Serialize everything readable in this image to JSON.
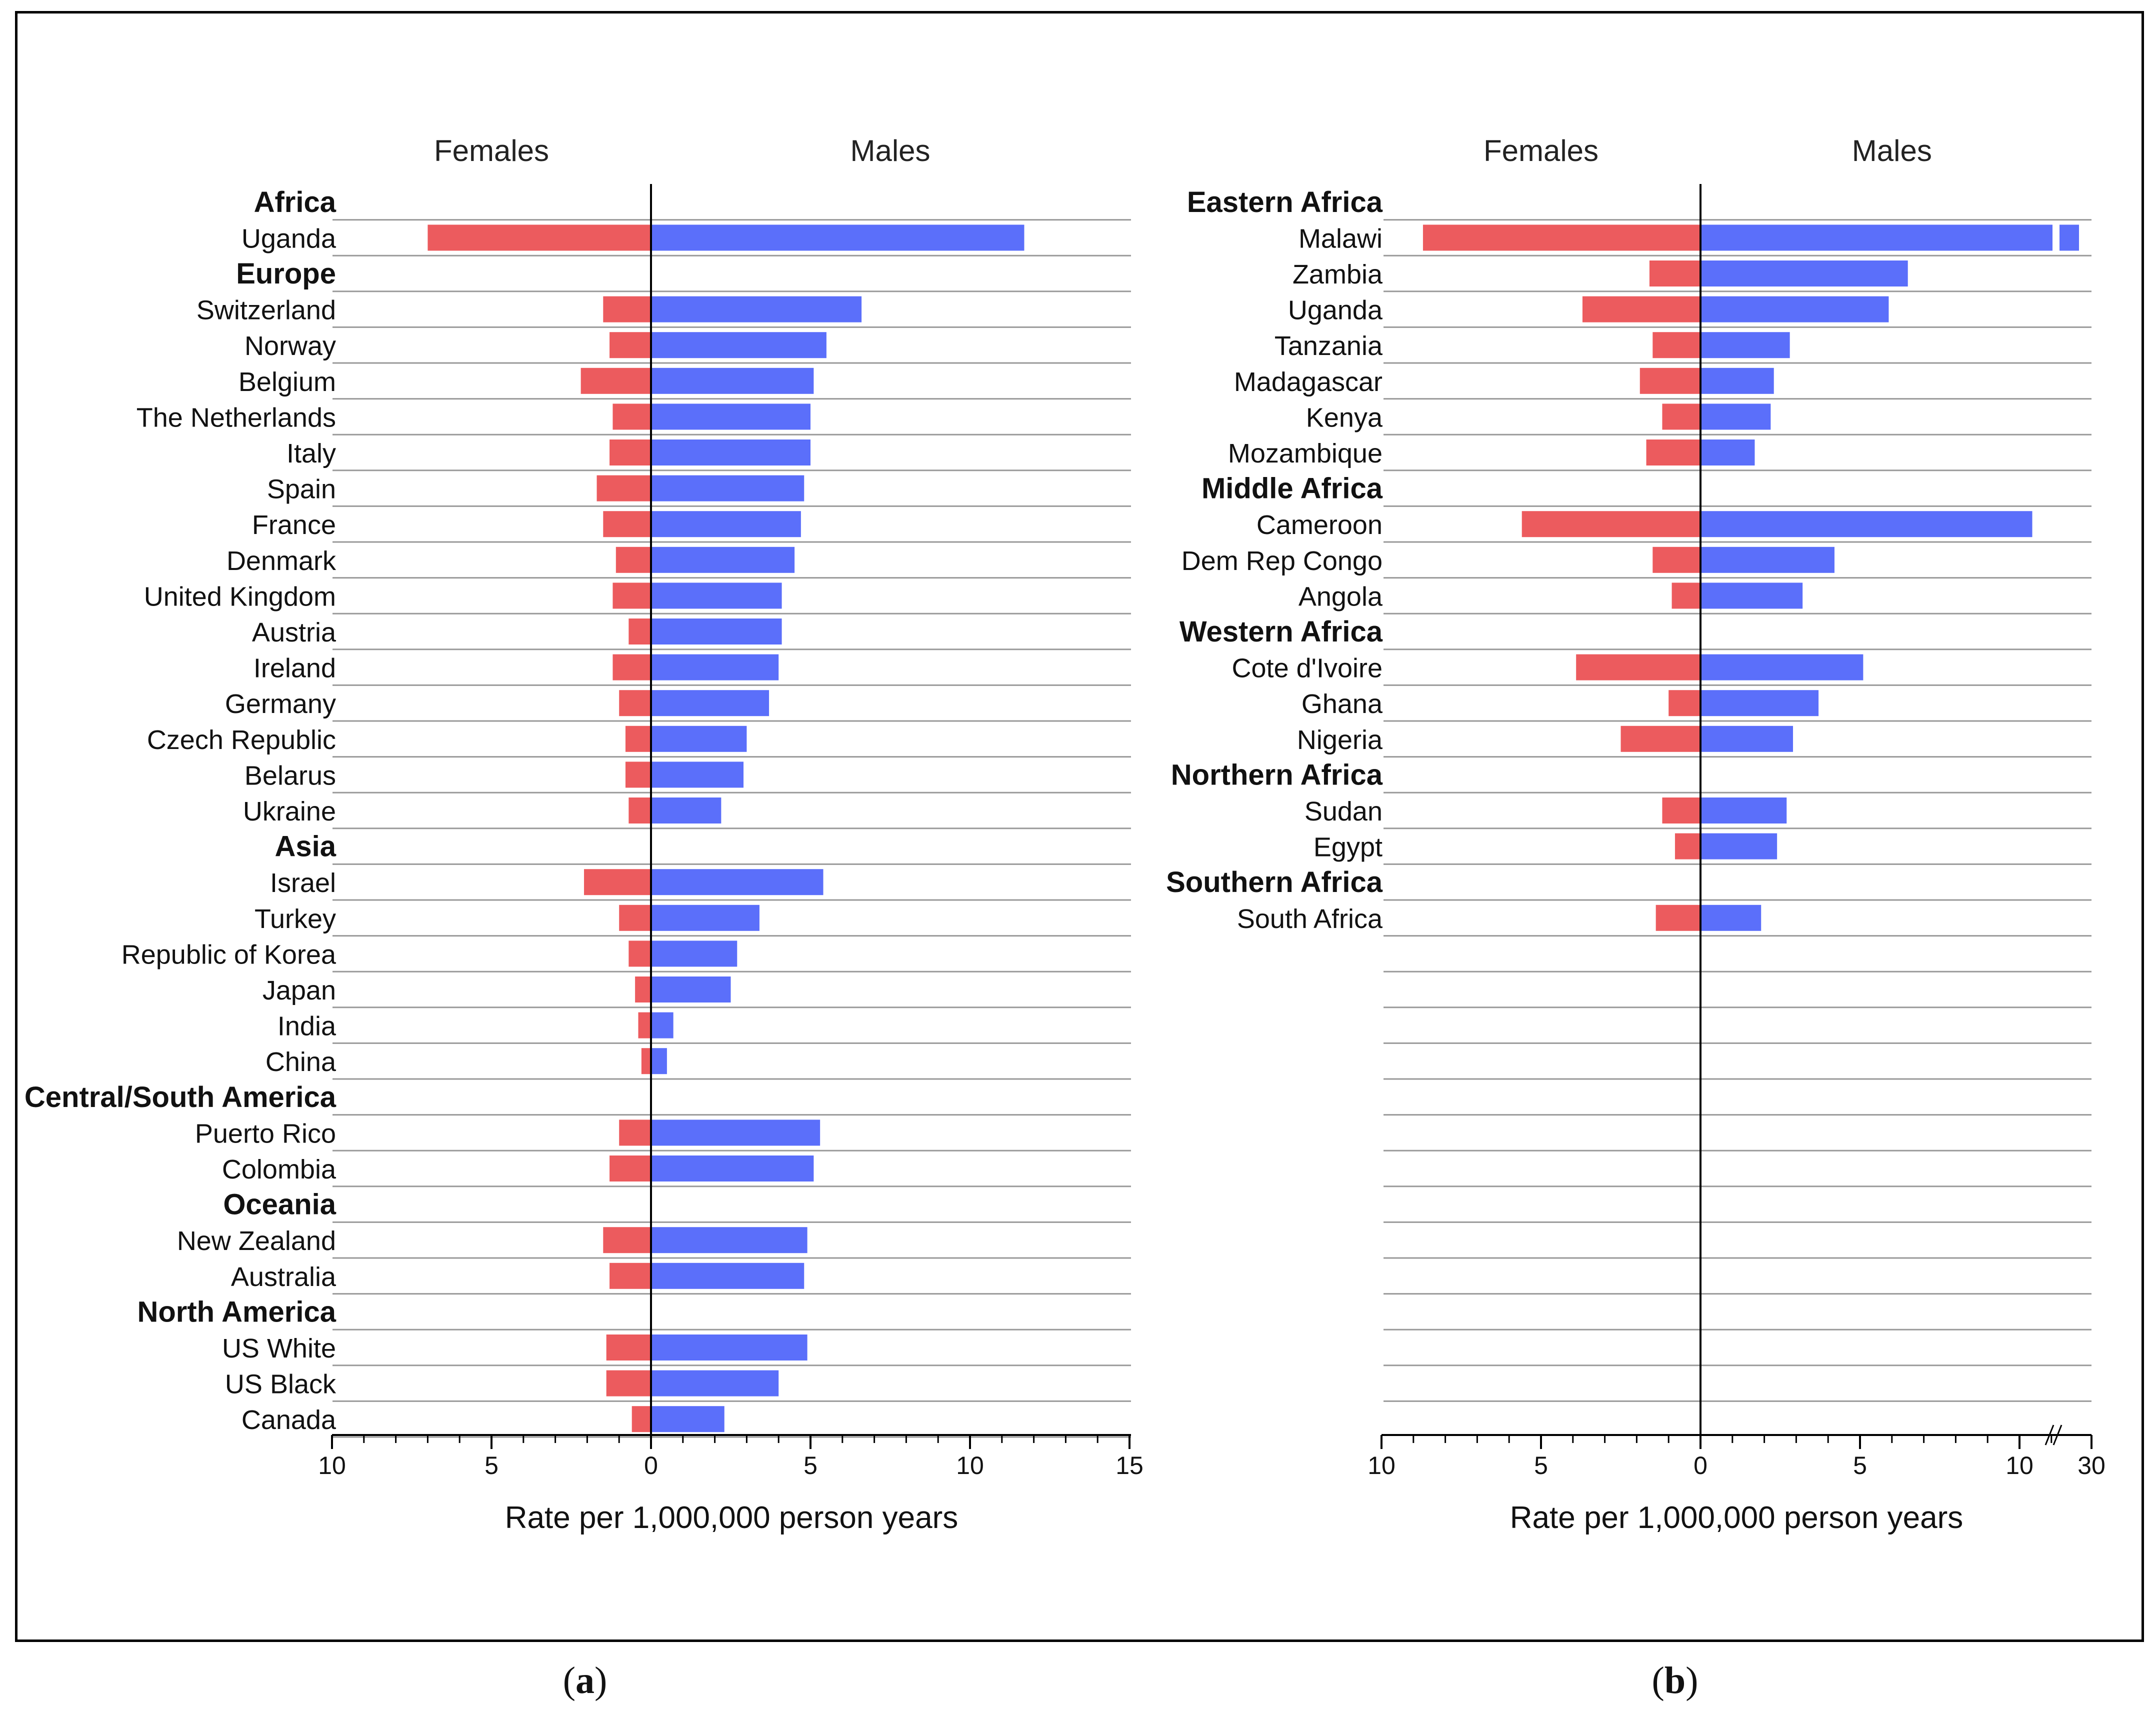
{
  "colors": {
    "female": "#ec5b5e",
    "male": "#5b6ffa",
    "grid": "#9a9a9a",
    "axis": "#000000"
  },
  "chart_data": [
    {
      "id": "a",
      "type": "bar",
      "orientation": "horizontal-diverging",
      "header_left": "Females",
      "header_right": "Males",
      "xlabel": "Rate per 1,000,000 person years",
      "xlim": [
        -10,
        15
      ],
      "x_ticks": [
        -10,
        -5,
        0,
        5,
        10,
        15
      ],
      "x_tick_labels": [
        "10",
        "5",
        "0",
        "5",
        "10",
        "15"
      ],
      "caption_label": "a",
      "rows": [
        {
          "label": "Africa",
          "group": true
        },
        {
          "label": "Uganda",
          "female": 7.0,
          "male": 11.7
        },
        {
          "label": "Europe",
          "group": true
        },
        {
          "label": "Switzerland",
          "female": 1.5,
          "male": 6.6
        },
        {
          "label": "Norway",
          "female": 1.3,
          "male": 5.5
        },
        {
          "label": "Belgium",
          "female": 2.2,
          "male": 5.1
        },
        {
          "label": "The Netherlands",
          "female": 1.2,
          "male": 5.0
        },
        {
          "label": "Italy",
          "female": 1.3,
          "male": 5.0
        },
        {
          "label": "Spain",
          "female": 1.7,
          "male": 4.8
        },
        {
          "label": "France",
          "female": 1.5,
          "male": 4.7
        },
        {
          "label": "Denmark",
          "female": 1.1,
          "male": 4.5
        },
        {
          "label": "United Kingdom",
          "female": 1.2,
          "male": 4.1
        },
        {
          "label": "Austria",
          "female": 0.7,
          "male": 4.1
        },
        {
          "label": "Ireland",
          "female": 1.2,
          "male": 4.0
        },
        {
          "label": "Germany",
          "female": 1.0,
          "male": 3.7
        },
        {
          "label": "Czech Republic",
          "female": 0.8,
          "male": 3.0
        },
        {
          "label": "Belarus",
          "female": 0.8,
          "male": 2.9
        },
        {
          "label": "Ukraine",
          "female": 0.7,
          "male": 2.2
        },
        {
          "label": "Asia",
          "group": true
        },
        {
          "label": "Israel",
          "female": 2.1,
          "male": 5.4
        },
        {
          "label": "Turkey",
          "female": 1.0,
          "male": 3.4
        },
        {
          "label": "Republic of Korea",
          "female": 0.7,
          "male": 2.7
        },
        {
          "label": "Japan",
          "female": 0.5,
          "male": 2.5
        },
        {
          "label": "India",
          "female": 0.4,
          "male": 0.7
        },
        {
          "label": "China",
          "female": 0.3,
          "male": 0.5
        },
        {
          "label": "Central/South America",
          "group": true
        },
        {
          "label": "Puerto Rico",
          "female": 1.0,
          "male": 5.3
        },
        {
          "label": "Colombia",
          "female": 1.3,
          "male": 5.1
        },
        {
          "label": "Oceania",
          "group": true
        },
        {
          "label": "New Zealand",
          "female": 1.5,
          "male": 4.9
        },
        {
          "label": "Australia",
          "female": 1.3,
          "male": 4.8
        },
        {
          "label": "North America",
          "group": true
        },
        {
          "label": "US White",
          "female": 1.4,
          "male": 4.9
        },
        {
          "label": "US Black",
          "female": 1.4,
          "male": 4.0
        },
        {
          "label": "Canada",
          "female": 0.6,
          "male": 2.3
        }
      ]
    },
    {
      "id": "b",
      "type": "bar",
      "orientation": "horizontal-diverging",
      "header_left": "Females",
      "header_right": "Males",
      "xlabel": "Rate per 1,000,000 person years",
      "xlim": [
        -10,
        12
      ],
      "axis_break_after": 11,
      "x_ticks": [
        -10,
        -5,
        0,
        5,
        10
      ],
      "x_tick_labels": [
        "10",
        "5",
        "0",
        "5",
        "10"
      ],
      "break_tick_label": "30",
      "caption_label": "b",
      "rows": [
        {
          "label": "Eastern Africa",
          "group": true
        },
        {
          "label": "Malawi",
          "female": 8.7,
          "male": 30,
          "male_broken": true
        },
        {
          "label": "Zambia",
          "female": 1.6,
          "male": 6.5
        },
        {
          "label": "Uganda",
          "female": 3.7,
          "male": 5.9
        },
        {
          "label": "Tanzania",
          "female": 1.5,
          "male": 2.8
        },
        {
          "label": "Madagascar",
          "female": 1.9,
          "male": 2.3
        },
        {
          "label": "Kenya",
          "female": 1.2,
          "male": 2.2
        },
        {
          "label": "Mozambique",
          "female": 1.7,
          "male": 1.7
        },
        {
          "label": "Middle Africa",
          "group": true
        },
        {
          "label": "Cameroon",
          "female": 5.6,
          "male": 10.4
        },
        {
          "label": "Dem Rep Congo",
          "female": 1.5,
          "male": 4.2
        },
        {
          "label": "Angola",
          "female": 0.9,
          "male": 3.2
        },
        {
          "label": "Western Africa",
          "group": true
        },
        {
          "label": "Cote d'Ivoire",
          "female": 3.9,
          "male": 5.1
        },
        {
          "label": "Ghana",
          "female": 1.0,
          "male": 3.7
        },
        {
          "label": "Nigeria",
          "female": 2.5,
          "male": 2.9
        },
        {
          "label": "Northern Africa",
          "group": true
        },
        {
          "label": "Sudan",
          "female": 1.2,
          "male": 2.7
        },
        {
          "label": "Egypt",
          "female": 0.8,
          "male": 2.4
        },
        {
          "label": "Southern Africa",
          "group": true
        },
        {
          "label": "South Africa",
          "female": 1.4,
          "male": 1.9
        }
      ]
    }
  ]
}
